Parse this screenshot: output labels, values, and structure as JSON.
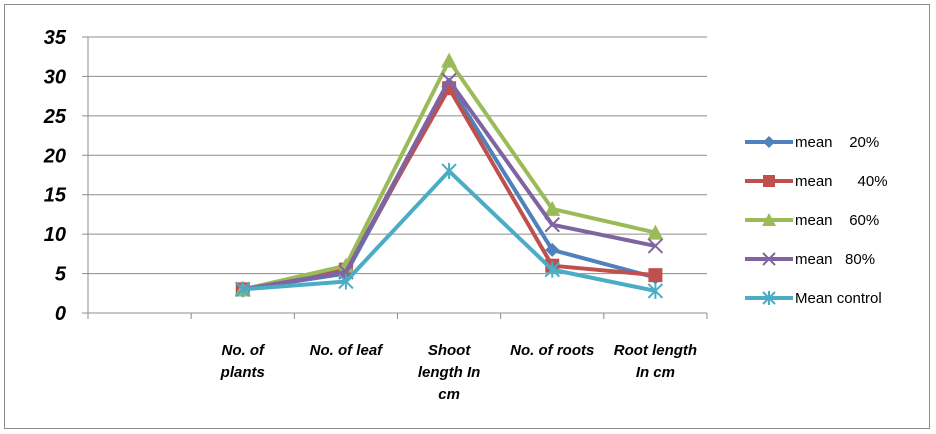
{
  "chart_data": {
    "type": "line",
    "title": "",
    "xlabel": "",
    "ylabel": "",
    "categories": [
      "",
      "No. of plants",
      "No. of leaf",
      "Shoot length In cm",
      "No. of roots",
      "Root length In cm"
    ],
    "category_lines": [
      [
        ""
      ],
      [
        "No. of",
        "plants"
      ],
      [
        "No. of leaf"
      ],
      [
        "Shoot",
        "length In",
        "cm"
      ],
      [
        "No. of roots"
      ],
      [
        "Root length",
        "In cm"
      ]
    ],
    "ylim": [
      0,
      35
    ],
    "yticks": [
      "0",
      "5",
      "10",
      "15",
      "20",
      "25",
      "30",
      "35"
    ],
    "grid": true,
    "legend_position": "right",
    "series": [
      {
        "name": "mean    20%",
        "color": "#4f81bd",
        "marker": "diamond",
        "values": [
          null,
          3,
          5,
          29,
          8,
          4.5
        ]
      },
      {
        "name": "mean      40%",
        "color": "#c0504d",
        "marker": "square",
        "values": [
          null,
          3,
          5.5,
          28.5,
          6,
          4.8
        ]
      },
      {
        "name": "mean    60%",
        "color": "#9bbb59",
        "marker": "triangle",
        "values": [
          null,
          3,
          6,
          32,
          13.2,
          10.2
        ]
      },
      {
        "name": "mean   80%",
        "color": "#8064a2",
        "marker": "x",
        "values": [
          null,
          3,
          5.2,
          29.5,
          11.2,
          8.5
        ]
      },
      {
        "name": "Mean control",
        "color": "#4bacc6",
        "marker": "star",
        "values": [
          null,
          3,
          4,
          18,
          5.5,
          2.8
        ]
      }
    ]
  }
}
